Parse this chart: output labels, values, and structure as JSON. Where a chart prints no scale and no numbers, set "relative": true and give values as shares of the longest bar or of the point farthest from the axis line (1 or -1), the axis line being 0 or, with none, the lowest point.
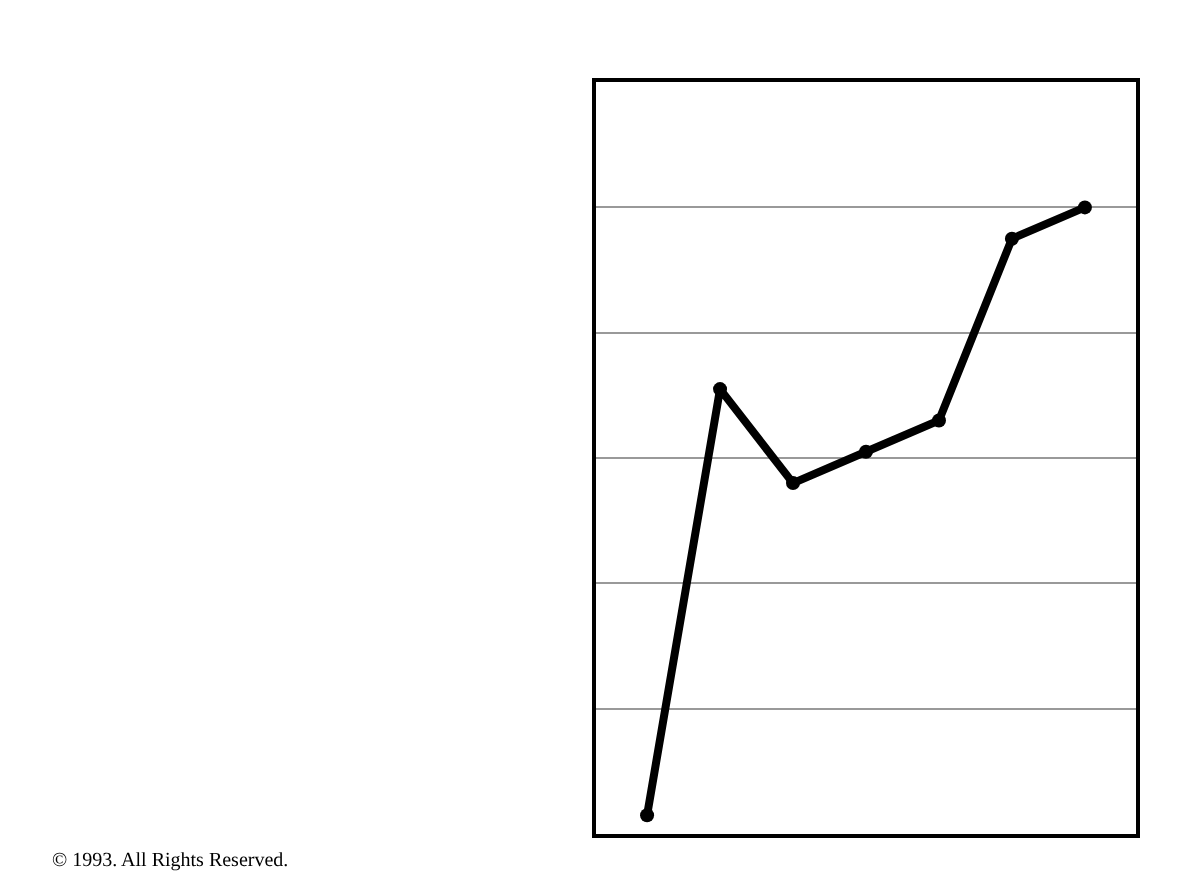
{
  "chart_data": {
    "type": "line",
    "relative": true,
    "categories": [
      null,
      null,
      null,
      null,
      null,
      null,
      null
    ],
    "series": [
      {
        "color": "#000000",
        "values": [
          0.03,
          0.71,
          0.56,
          0.61,
          0.66,
          0.95,
          1
        ]
      }
    ],
    "marker": "circle",
    "line_style": "solid",
    "grid": "y",
    "legend": false,
    "annotations": [
      "© 1993. All Rights Reserved."
    ]
  }
}
